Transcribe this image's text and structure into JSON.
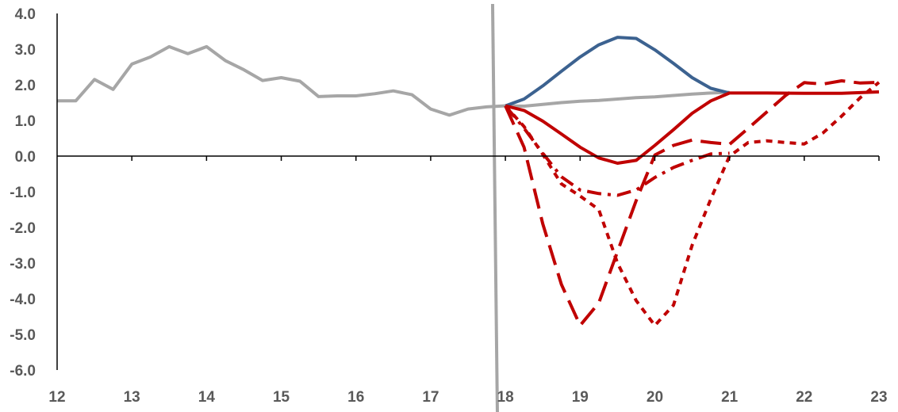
{
  "chart_data": {
    "type": "line",
    "title": "",
    "xlabel": "",
    "ylabel": "",
    "xlim": [
      12,
      23
    ],
    "ylim": [
      -6,
      4
    ],
    "x_ticks": [
      12,
      13,
      14,
      15,
      16,
      17,
      18,
      19,
      20,
      21,
      22,
      23
    ],
    "x_tick_labels": [
      "12",
      "13",
      "14",
      "15",
      "16",
      "17",
      "18",
      "19",
      "20",
      "21",
      "22",
      "23"
    ],
    "y_ticks": [
      4,
      3,
      2,
      1,
      0,
      -1,
      -2,
      -3,
      -4,
      -5,
      -6
    ],
    "y_tick_labels": [
      "4.0",
      "3.0",
      "2.0",
      "1.0",
      "0.0",
      "-1.0",
      "-2.0",
      "-3.0",
      "-4.0",
      "-5.0",
      "-6.0"
    ],
    "grid": false,
    "legend": "none",
    "vline_x": 17.85,
    "vline_color": "#a6a6a6",
    "series": [
      {
        "color": "#a6a6a6",
        "style": "solid",
        "x": [
          12,
          12.25,
          12.5,
          12.75,
          13,
          13.25,
          13.5,
          13.75,
          14,
          14.25,
          14.5,
          14.75,
          15,
          15.25,
          15.5,
          15.75,
          16,
          16.25,
          16.5,
          16.75,
          17,
          17.25,
          17.5,
          17.75,
          18,
          18.25,
          18.5,
          18.75,
          19,
          19.25,
          19.5,
          19.75,
          20,
          20.25,
          20.5,
          20.75,
          21
        ],
        "y": [
          1.55,
          1.55,
          2.15,
          1.87,
          2.58,
          2.78,
          3.07,
          2.87,
          3.07,
          2.68,
          2.42,
          2.12,
          2.2,
          2.1,
          1.67,
          1.69,
          1.69,
          1.75,
          1.83,
          1.72,
          1.32,
          1.15,
          1.32,
          1.38,
          1.41,
          1.4,
          1.45,
          1.5,
          1.54,
          1.56,
          1.6,
          1.64,
          1.66,
          1.7,
          1.74,
          1.77,
          1.79
        ]
      },
      {
        "color": "#3c6290",
        "style": "solid",
        "x": [
          18,
          18.25,
          18.5,
          18.75,
          19,
          19.25,
          19.5,
          19.75,
          20,
          20.25,
          20.5,
          20.75,
          21
        ],
        "y": [
          1.41,
          1.6,
          1.97,
          2.38,
          2.78,
          3.12,
          3.33,
          3.3,
          2.98,
          2.6,
          2.2,
          1.9,
          1.77
        ]
      },
      {
        "color": "#c00000",
        "style": "solid",
        "x": [
          18,
          18.25,
          18.5,
          18.75,
          19,
          19.25,
          19.5,
          19.75,
          20,
          20.25,
          20.5,
          20.75,
          21,
          21.5,
          22,
          22.5,
          23
        ],
        "y": [
          1.41,
          1.28,
          0.98,
          0.62,
          0.25,
          -0.05,
          -0.2,
          -0.12,
          0.3,
          0.74,
          1.2,
          1.55,
          1.77,
          1.77,
          1.76,
          1.76,
          1.8
        ]
      },
      {
        "color": "#c00000",
        "style": "longdash",
        "x": [
          18,
          18.25,
          18.5,
          18.75,
          19,
          19.25,
          19.5,
          19.75,
          20,
          20.25,
          20.5,
          20.75,
          21,
          21.25,
          21.5,
          21.75,
          22,
          22.25,
          22.5,
          22.75,
          23
        ],
        "y": [
          1.41,
          0.25,
          -1.9,
          -3.6,
          -4.75,
          -4.12,
          -2.68,
          -1.25,
          0.03,
          0.3,
          0.45,
          0.38,
          0.33,
          0.78,
          1.24,
          1.7,
          2.06,
          2.02,
          2.11,
          2.05,
          2.07
        ]
      },
      {
        "color": "#c00000",
        "style": "dashdot",
        "x": [
          18,
          18.25,
          18.5,
          18.75,
          19,
          19.25,
          19.5,
          19.75,
          20,
          20.25,
          20.5,
          20.75,
          21
        ],
        "y": [
          1.41,
          0.78,
          0.08,
          -0.58,
          -0.95,
          -1.05,
          -1.1,
          -0.95,
          -0.6,
          -0.32,
          -0.12,
          0.06,
          0.08
        ]
      },
      {
        "color": "#c00000",
        "style": "shortdash",
        "x": [
          18,
          18.25,
          18.5,
          18.75,
          19,
          19.25,
          19.5,
          19.75,
          20,
          20.25,
          20.5,
          20.75,
          21,
          21.25,
          21.5,
          21.75,
          22,
          22.25,
          22.5,
          22.75,
          23
        ],
        "y": [
          1.41,
          0.83,
          0.05,
          -0.78,
          -1.12,
          -1.5,
          -3.0,
          -4.05,
          -4.75,
          -4.18,
          -2.5,
          -1.2,
          0.0,
          0.38,
          0.43,
          0.38,
          0.34,
          0.65,
          1.12,
          1.64,
          2.07
        ]
      }
    ]
  }
}
